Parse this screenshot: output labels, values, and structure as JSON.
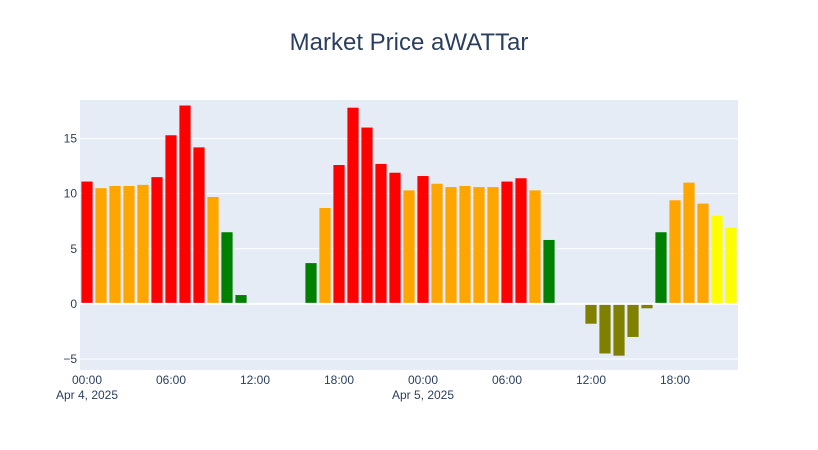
{
  "chart_data": {
    "type": "bar",
    "title": "Market Price aWATTar",
    "xlabel": "",
    "ylabel": "",
    "grid": true,
    "legend": "none",
    "ylim": [
      -6,
      18.5
    ],
    "y_ticks": [
      -5,
      0,
      5,
      10,
      15
    ],
    "y_tick_labels": [
      "−5",
      "0",
      "5",
      "10",
      "15"
    ],
    "x_ticks": [
      {
        "x": "2025-04-04T00:00",
        "label": "00:00",
        "sublabel": "Apr 4, 2025"
      },
      {
        "x": "2025-04-04T06:00",
        "label": "06:00",
        "sublabel": ""
      },
      {
        "x": "2025-04-04T12:00",
        "label": "12:00",
        "sublabel": ""
      },
      {
        "x": "2025-04-04T18:00",
        "label": "18:00",
        "sublabel": ""
      },
      {
        "x": "2025-04-05T00:00",
        "label": "00:00",
        "sublabel": "Apr 5, 2025"
      },
      {
        "x": "2025-04-05T06:00",
        "label": "06:00",
        "sublabel": ""
      },
      {
        "x": "2025-04-05T12:00",
        "label": "12:00",
        "sublabel": ""
      },
      {
        "x": "2025-04-05T18:00",
        "label": "18:00",
        "sublabel": ""
      }
    ],
    "x_range": [
      "2025-04-03T23:30",
      "2025-04-05T22:30"
    ],
    "colors": {
      "red": "#ff0000",
      "orange": "#ffa500",
      "green": "#008000",
      "lightgreen": "#90ee90",
      "olive": "#808000",
      "yellow": "#ffff00"
    },
    "plot_background": "#e5ecf6",
    "bars": [
      {
        "x": "2025-04-04T00:00",
        "y": 11.1,
        "color": "red"
      },
      {
        "x": "2025-04-04T01:00",
        "y": 10.5,
        "color": "orange"
      },
      {
        "x": "2025-04-04T02:00",
        "y": 10.7,
        "color": "orange"
      },
      {
        "x": "2025-04-04T03:00",
        "y": 10.7,
        "color": "orange"
      },
      {
        "x": "2025-04-04T04:00",
        "y": 10.8,
        "color": "orange"
      },
      {
        "x": "2025-04-04T05:00",
        "y": 11.5,
        "color": "red"
      },
      {
        "x": "2025-04-04T06:00",
        "y": 15.3,
        "color": "red"
      },
      {
        "x": "2025-04-04T07:00",
        "y": 18.0,
        "color": "red"
      },
      {
        "x": "2025-04-04T08:00",
        "y": 14.2,
        "color": "red"
      },
      {
        "x": "2025-04-04T09:00",
        "y": 9.7,
        "color": "orange"
      },
      {
        "x": "2025-04-04T10:00",
        "y": 6.5,
        "color": "green"
      },
      {
        "x": "2025-04-04T11:00",
        "y": 0.8,
        "color": "green"
      },
      {
        "x": "2025-04-04T12:00",
        "y": 0.0,
        "color": "lightgreen"
      },
      {
        "x": "2025-04-04T13:00",
        "y": -0.1,
        "color": "lightgreen"
      },
      {
        "x": "2025-04-04T14:00",
        "y": -0.1,
        "color": "lightgreen"
      },
      {
        "x": "2025-04-04T15:00",
        "y": 0.1,
        "color": "lightgreen"
      },
      {
        "x": "2025-04-04T16:00",
        "y": 3.7,
        "color": "green"
      },
      {
        "x": "2025-04-04T17:00",
        "y": 8.7,
        "color": "orange"
      },
      {
        "x": "2025-04-04T18:00",
        "y": 12.6,
        "color": "red"
      },
      {
        "x": "2025-04-04T19:00",
        "y": 17.8,
        "color": "red"
      },
      {
        "x": "2025-04-04T20:00",
        "y": 16.0,
        "color": "red"
      },
      {
        "x": "2025-04-04T21:00",
        "y": 12.7,
        "color": "red"
      },
      {
        "x": "2025-04-04T22:00",
        "y": 11.9,
        "color": "red"
      },
      {
        "x": "2025-04-04T23:00",
        "y": 10.3,
        "color": "orange"
      },
      {
        "x": "2025-04-05T00:00",
        "y": 11.6,
        "color": "red"
      },
      {
        "x": "2025-04-05T01:00",
        "y": 10.9,
        "color": "orange"
      },
      {
        "x": "2025-04-05T02:00",
        "y": 10.6,
        "color": "orange"
      },
      {
        "x": "2025-04-05T03:00",
        "y": 10.7,
        "color": "orange"
      },
      {
        "x": "2025-04-05T04:00",
        "y": 10.6,
        "color": "orange"
      },
      {
        "x": "2025-04-05T05:00",
        "y": 10.6,
        "color": "orange"
      },
      {
        "x": "2025-04-05T06:00",
        "y": 11.1,
        "color": "red"
      },
      {
        "x": "2025-04-05T07:00",
        "y": 11.4,
        "color": "red"
      },
      {
        "x": "2025-04-05T08:00",
        "y": 10.3,
        "color": "orange"
      },
      {
        "x": "2025-04-05T09:00",
        "y": 5.8,
        "color": "green"
      },
      {
        "x": "2025-04-05T10:00",
        "y": 0.1,
        "color": "lightgreen"
      },
      {
        "x": "2025-04-05T11:00",
        "y": -0.1,
        "color": "lightgreen"
      },
      {
        "x": "2025-04-05T12:00",
        "y": -1.8,
        "color": "olive"
      },
      {
        "x": "2025-04-05T13:00",
        "y": -4.5,
        "color": "olive"
      },
      {
        "x": "2025-04-05T14:00",
        "y": -4.7,
        "color": "olive"
      },
      {
        "x": "2025-04-05T15:00",
        "y": -3.0,
        "color": "olive"
      },
      {
        "x": "2025-04-05T16:00",
        "y": -0.4,
        "color": "olive"
      },
      {
        "x": "2025-04-05T17:00",
        "y": 6.5,
        "color": "green"
      },
      {
        "x": "2025-04-05T18:00",
        "y": 9.4,
        "color": "orange"
      },
      {
        "x": "2025-04-05T19:00",
        "y": 11.0,
        "color": "orange"
      },
      {
        "x": "2025-04-05T20:00",
        "y": 9.1,
        "color": "orange"
      },
      {
        "x": "2025-04-05T21:00",
        "y": 8.0,
        "color": "yellow"
      },
      {
        "x": "2025-04-05T22:00",
        "y": 6.9,
        "color": "yellow"
      }
    ]
  }
}
